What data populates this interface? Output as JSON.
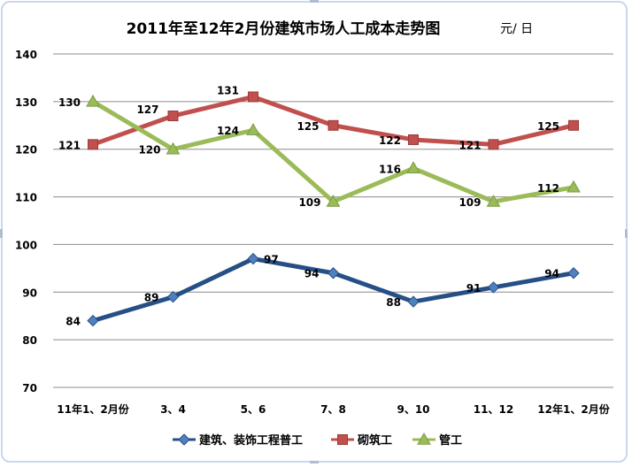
{
  "chart_data": {
    "type": "line",
    "title": "2011年至12年2月份建筑市场人工成本走势图",
    "unit": "元/ 日",
    "categories": [
      "11年1、2月份",
      "3、4",
      "5、6",
      "7、8",
      "9、10",
      "11、12",
      "12年1、2月份"
    ],
    "ylim": [
      70,
      140
    ],
    "yticks": [
      70,
      80,
      90,
      100,
      110,
      120,
      130,
      140
    ],
    "grid": true,
    "legend_position": "bottom",
    "series": [
      {
        "name": "建筑、装饰工程普工",
        "values": [
          84,
          89,
          97,
          94,
          88,
          91,
          94
        ],
        "color": "#254f85",
        "marker": "diamond"
      },
      {
        "name": "砌筑工",
        "values": [
          121,
          127,
          131,
          125,
          122,
          121,
          125
        ],
        "color": "#c0504d",
        "marker": "square"
      },
      {
        "name": "管工",
        "values": [
          130,
          120,
          124,
          109,
          116,
          109,
          112
        ],
        "color": "#9bbb59",
        "marker": "triangle"
      }
    ]
  }
}
